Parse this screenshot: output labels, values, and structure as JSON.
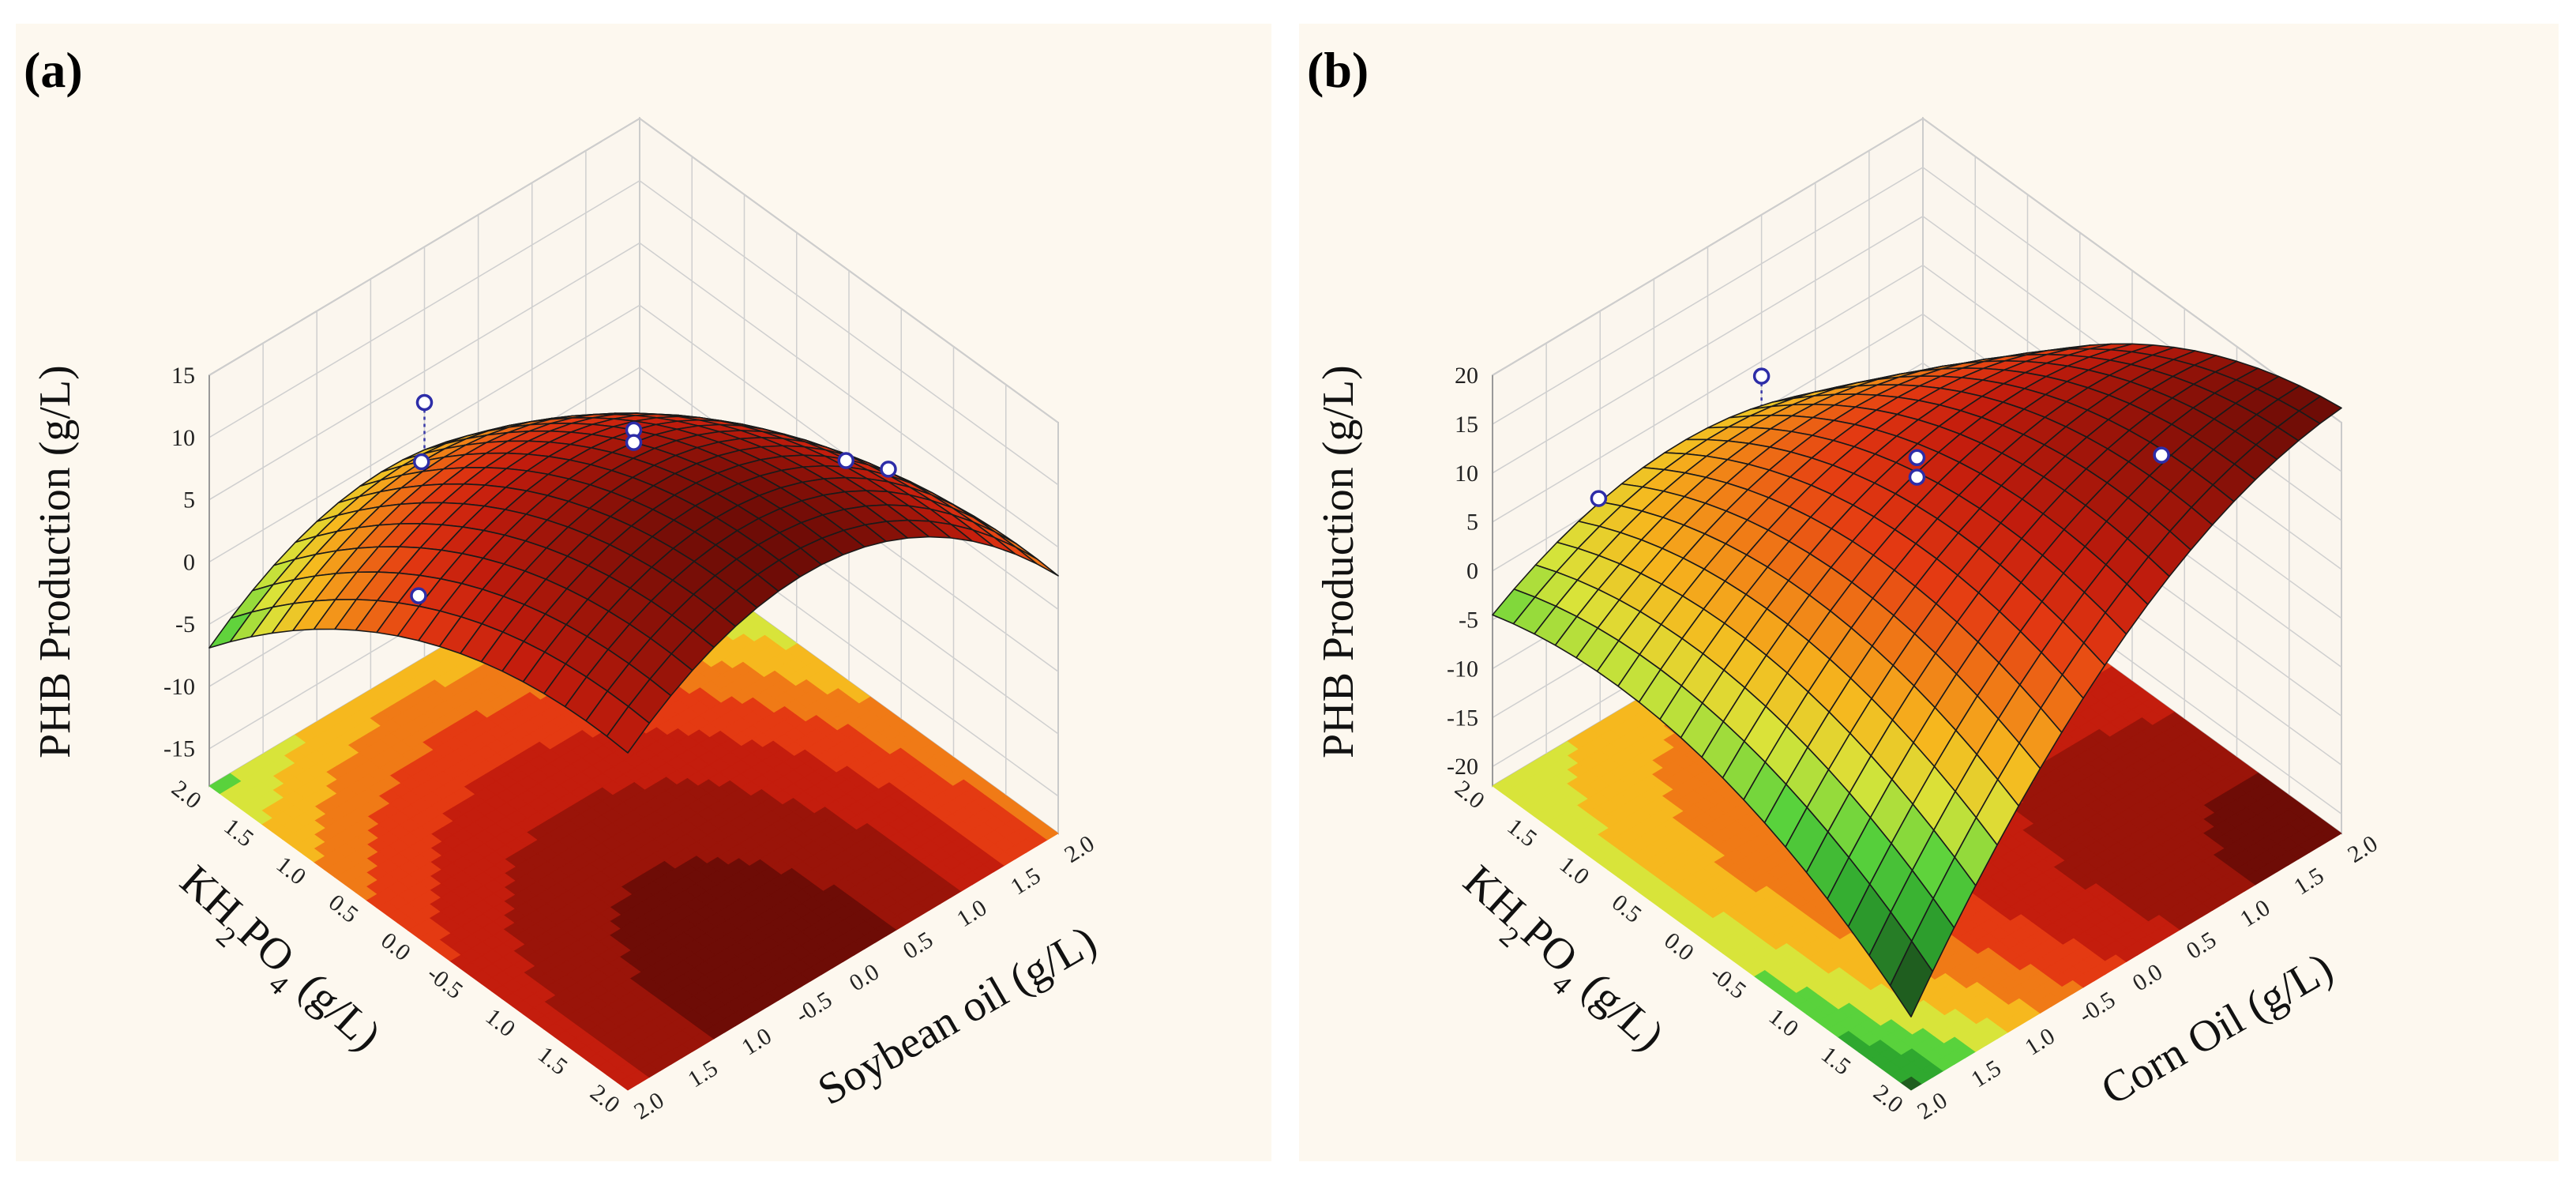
{
  "chart_data": [
    {
      "type": "surface",
      "panel_label": "(a)",
      "title": "",
      "zlabel": "PHB Production  (g/L)",
      "xlabel": "Soybean oil (g/L)",
      "ylabel_main": "KH",
      "ylabel_sub1": "2",
      "ylabel_mid": "PO",
      "ylabel_sub2": "4",
      "ylabel_tail": " (g/L)",
      "z_ticks": [
        "15",
        "10",
        "5",
        "0",
        "-5",
        "-10",
        "-15"
      ],
      "zlim": [
        -18,
        15
      ],
      "x_ticks": [
        "2.0",
        "1.5",
        "1.0",
        "0.5",
        "0.0",
        "-0.5",
        "1.0",
        "1.5",
        "2.0"
      ],
      "y_ticks": [
        "2.0",
        "1.5",
        "1.0",
        "0.5",
        "0.0",
        "-0.5",
        "1.0",
        "1.5",
        "2.0"
      ],
      "xlim": [
        -2,
        2
      ],
      "ylim": [
        -2,
        2
      ],
      "model": {
        "c": 11.5,
        "a": -2.2,
        "b": -1.2,
        "ax": -1.6,
        "ay": -4.0,
        "axy": 0.0
      },
      "points": [
        {
          "x": -2.0,
          "y": 0.0,
          "z": 9.5
        },
        {
          "x": -1.0,
          "y": 1.0,
          "z": 9.0
        },
        {
          "x": 0.0,
          "y": 0.0,
          "z": 12.5
        },
        {
          "x": 0.0,
          "y": 0.0,
          "z": 11.5
        },
        {
          "x": 1.0,
          "y": -1.0,
          "z": 11.0
        },
        {
          "x": 1.2,
          "y": -1.2,
          "z": 10.5
        },
        {
          "x": 0.0,
          "y": 2.0,
          "z": 2.5
        }
      ],
      "colormap": [
        "#1f5e1f",
        "#2fa82f",
        "#59d23c",
        "#d8e43a",
        "#f6b81e",
        "#f07a16",
        "#e43a12",
        "#c41d0d",
        "#9a1409",
        "#6e0c06"
      ]
    },
    {
      "type": "surface",
      "panel_label": "(b)",
      "title": "",
      "zlabel": "PHB Production (g/L)",
      "xlabel": "Corn Oil (g/L)",
      "ylabel_main": "KH",
      "ylabel_sub1": "2",
      "ylabel_mid": "PO",
      "ylabel_sub2": "4",
      "ylabel_tail": " (g/L)",
      "z_ticks": [
        "20",
        "15",
        "10",
        "5",
        "0",
        "-5",
        "-10",
        "-15",
        "-20"
      ],
      "zlim": [
        -22,
        20
      ],
      "x_ticks": [
        "2.0",
        "1.5",
        "1.0",
        "0.5",
        "0.0",
        "-0.5",
        "1.0",
        "1.5",
        "2.0"
      ],
      "y_ticks": [
        "2.0",
        "1.5",
        "1.0",
        "0.5",
        "0.0",
        "-0.5",
        "1.0",
        "1.5",
        "2.0"
      ],
      "xlim": [
        -2,
        2
      ],
      "ylim": [
        -2,
        2
      ],
      "model": {
        "c": 12.5,
        "a": -2.0,
        "b": -1.5,
        "ax": 4.0,
        "ay": -2.5,
        "axy": -2.5
      },
      "points": [
        {
          "x": -1.5,
          "y": 1.5,
          "z": 8.0
        },
        {
          "x": 0.0,
          "y": 0.0,
          "z": 14.0
        },
        {
          "x": 0.0,
          "y": 0.0,
          "z": 12.0
        },
        {
          "x": 1.3,
          "y": -1.0,
          "z": 13.5
        },
        {
          "x": 0.5,
          "y": 2.0,
          "z": 3.5
        }
      ],
      "colormap": [
        "#1f5e1f",
        "#2fa82f",
        "#59d23c",
        "#d8e43a",
        "#f6b81e",
        "#f07a16",
        "#e43a12",
        "#c41d0d",
        "#9a1409",
        "#6e0c06"
      ]
    }
  ]
}
